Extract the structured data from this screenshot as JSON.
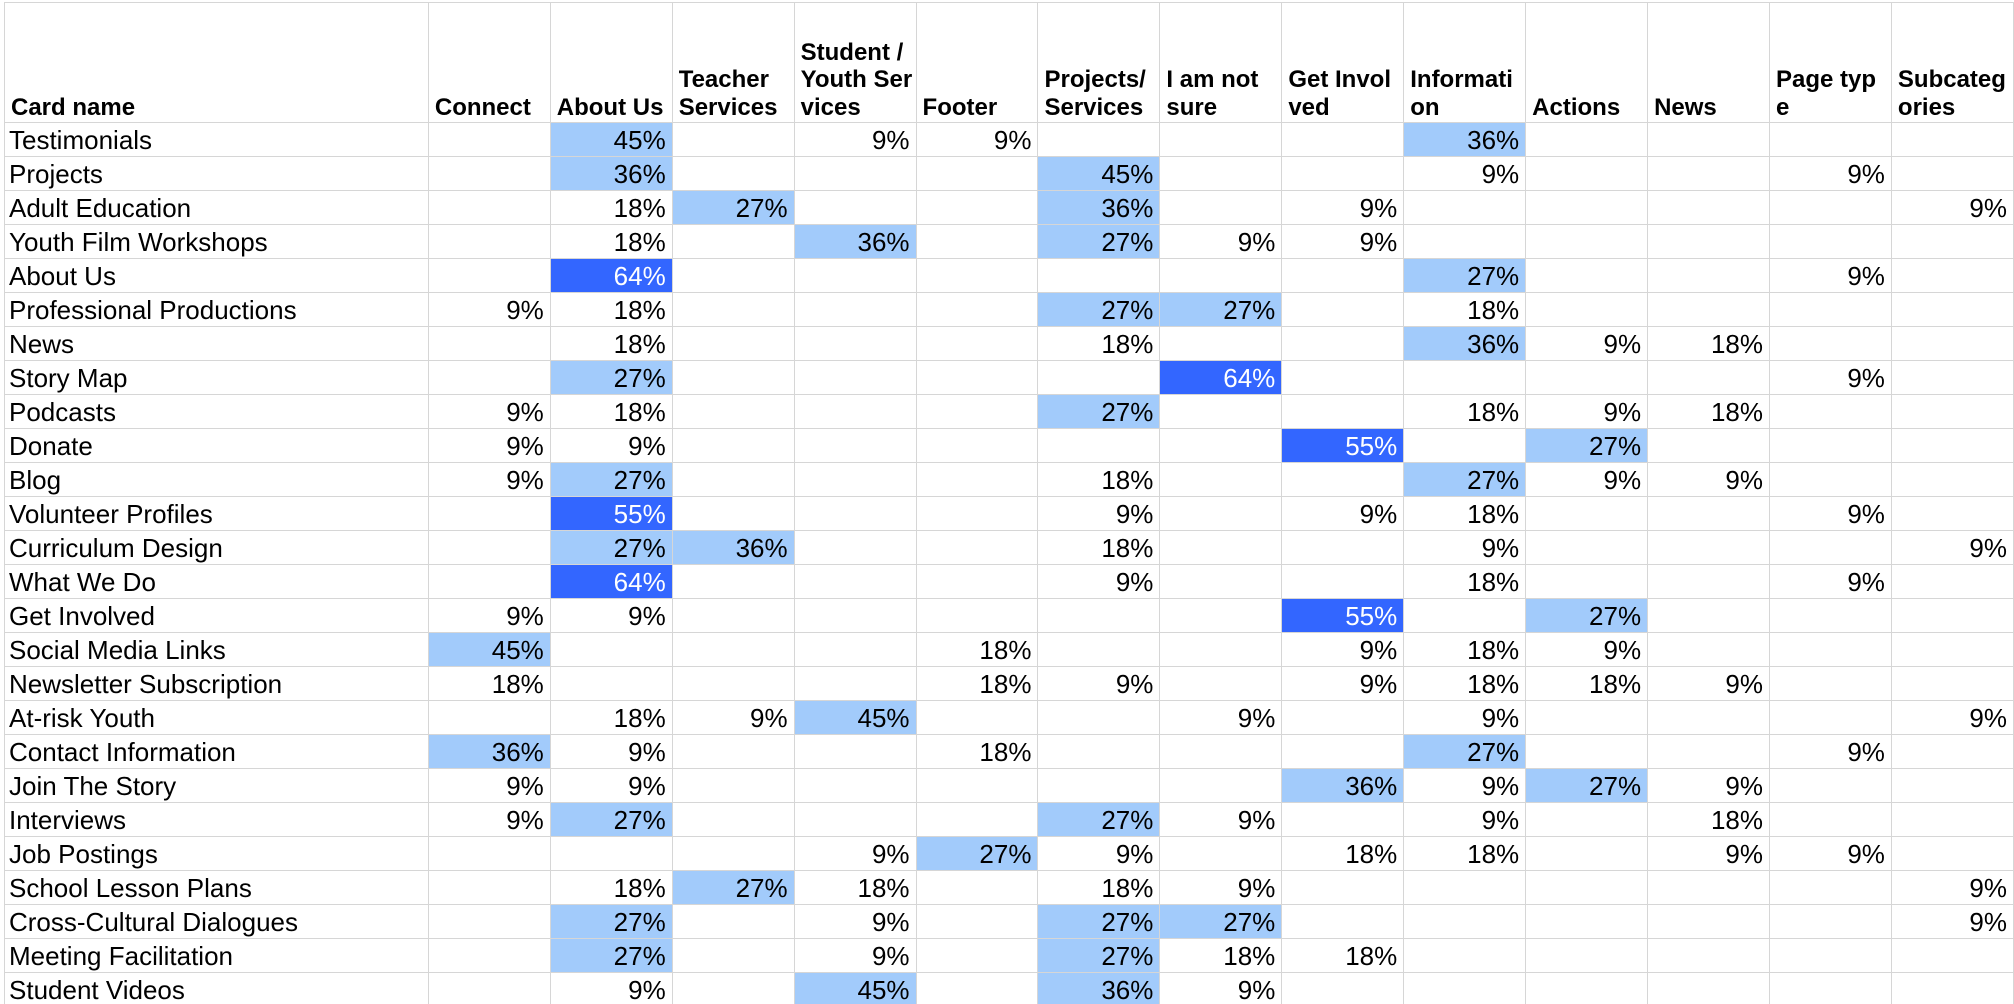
{
  "table": {
    "headers": [
      "Card name",
      "Connect",
      "About Us",
      "Teacher Services",
      "Student /Youth Services",
      "Footer",
      "Projects/Services",
      "I am not sure",
      "Get Involved",
      "Information",
      "Actions",
      "News",
      "Page type",
      "Subcategories"
    ],
    "rows": [
      {
        "name": "Testimonials",
        "values": [
          "",
          "45%",
          "",
          "9%",
          "9%",
          "",
          "",
          "",
          "36%",
          "",
          "",
          "",
          ""
        ]
      },
      {
        "name": "Projects",
        "values": [
          "",
          "36%",
          "",
          "",
          "",
          "45%",
          "",
          "",
          "9%",
          "",
          "",
          "9%",
          ""
        ]
      },
      {
        "name": "Adult Education",
        "values": [
          "",
          "18%",
          "27%",
          "",
          "",
          "36%",
          "",
          "9%",
          "",
          "",
          "",
          "",
          "9%"
        ]
      },
      {
        "name": "Youth Film Workshops",
        "values": [
          "",
          "18%",
          "",
          "36%",
          "",
          "27%",
          "9%",
          "9%",
          "",
          "",
          "",
          "",
          ""
        ]
      },
      {
        "name": "About Us",
        "values": [
          "",
          "64%",
          "",
          "",
          "",
          "",
          "",
          "",
          "27%",
          "",
          "",
          "9%",
          ""
        ]
      },
      {
        "name": "Professional Productions",
        "values": [
          "9%",
          "18%",
          "",
          "",
          "",
          "27%",
          "27%",
          "",
          "18%",
          "",
          "",
          "",
          ""
        ]
      },
      {
        "name": "News",
        "values": [
          "",
          "18%",
          "",
          "",
          "",
          "18%",
          "",
          "",
          "36%",
          "9%",
          "18%",
          "",
          ""
        ]
      },
      {
        "name": "Story Map",
        "values": [
          "",
          "27%",
          "",
          "",
          "",
          "",
          "64%",
          "",
          "",
          "",
          "",
          "9%",
          ""
        ]
      },
      {
        "name": "Podcasts",
        "values": [
          "9%",
          "18%",
          "",
          "",
          "",
          "27%",
          "",
          "",
          "18%",
          "9%",
          "18%",
          "",
          ""
        ]
      },
      {
        "name": "Donate",
        "values": [
          "9%",
          "9%",
          "",
          "",
          "",
          "",
          "",
          "55%",
          "",
          "27%",
          "",
          "",
          ""
        ]
      },
      {
        "name": "Blog",
        "values": [
          "9%",
          "27%",
          "",
          "",
          "",
          "18%",
          "",
          "",
          "27%",
          "9%",
          "9%",
          "",
          ""
        ]
      },
      {
        "name": "Volunteer Profiles",
        "values": [
          "",
          "55%",
          "",
          "",
          "",
          "9%",
          "",
          "9%",
          "18%",
          "",
          "",
          "9%",
          ""
        ]
      },
      {
        "name": "Curriculum Design",
        "values": [
          "",
          "27%",
          "36%",
          "",
          "",
          "18%",
          "",
          "",
          "9%",
          "",
          "",
          "",
          "9%"
        ]
      },
      {
        "name": "What We Do",
        "values": [
          "",
          "64%",
          "",
          "",
          "",
          "9%",
          "",
          "",
          "18%",
          "",
          "",
          "9%",
          ""
        ]
      },
      {
        "name": "Get Involved",
        "values": [
          "9%",
          "9%",
          "",
          "",
          "",
          "",
          "",
          "55%",
          "",
          "27%",
          "",
          "",
          ""
        ]
      },
      {
        "name": "Social Media Links",
        "values": [
          "45%",
          "",
          "",
          "",
          "18%",
          "",
          "",
          "9%",
          "18%",
          "9%",
          "",
          "",
          ""
        ]
      },
      {
        "name": "Newsletter Subscription",
        "values": [
          "18%",
          "",
          "",
          "",
          "18%",
          "9%",
          "",
          "9%",
          "18%",
          "18%",
          "9%",
          "",
          ""
        ]
      },
      {
        "name": "At-risk Youth",
        "values": [
          "",
          "18%",
          "9%",
          "45%",
          "",
          "",
          "9%",
          "",
          "9%",
          "",
          "",
          "",
          "9%"
        ]
      },
      {
        "name": "Contact Information",
        "values": [
          "36%",
          "9%",
          "",
          "",
          "18%",
          "",
          "",
          "",
          "27%",
          "",
          "",
          "9%",
          ""
        ]
      },
      {
        "name": "Join The Story",
        "values": [
          "9%",
          "9%",
          "",
          "",
          "",
          "",
          "",
          "36%",
          "9%",
          "27%",
          "9%",
          "",
          ""
        ]
      },
      {
        "name": "Interviews",
        "values": [
          "9%",
          "27%",
          "",
          "",
          "",
          "27%",
          "9%",
          "",
          "9%",
          "",
          "18%",
          "",
          ""
        ]
      },
      {
        "name": "Job Postings",
        "values": [
          "",
          "",
          "",
          "9%",
          "27%",
          "9%",
          "",
          "18%",
          "18%",
          "",
          "9%",
          "9%",
          ""
        ]
      },
      {
        "name": "School Lesson Plans",
        "values": [
          "",
          "18%",
          "27%",
          "18%",
          "",
          "18%",
          "9%",
          "",
          "",
          "",
          "",
          "",
          "9%"
        ]
      },
      {
        "name": "Cross-Cultural Dialogues",
        "values": [
          "",
          "27%",
          "",
          "9%",
          "",
          "27%",
          "27%",
          "",
          "",
          "",
          "",
          "",
          "9%"
        ]
      },
      {
        "name": "Meeting Facilitation",
        "values": [
          "",
          "27%",
          "",
          "9%",
          "",
          "27%",
          "18%",
          "18%",
          "",
          "",
          "",
          "",
          ""
        ]
      },
      {
        "name": "Student Videos",
        "values": [
          "",
          "9%",
          "",
          "45%",
          "",
          "36%",
          "9%",
          "",
          "",
          "",
          "",
          "",
          ""
        ]
      }
    ]
  },
  "chart_data": {
    "type": "heatmap",
    "title": "",
    "x": [
      "Connect",
      "About Us",
      "Teacher Services",
      "Student /Youth Services",
      "Footer",
      "Projects/Services",
      "I am not sure",
      "Get Involved",
      "Information",
      "Actions",
      "News",
      "Page type",
      "Subcategories"
    ],
    "y": [
      "Testimonials",
      "Projects",
      "Adult Education",
      "Youth Film Workshops",
      "About Us",
      "Professional Productions",
      "News",
      "Story Map",
      "Podcasts",
      "Donate",
      "Blog",
      "Volunteer Profiles",
      "Curriculum Design",
      "What We Do",
      "Get Involved",
      "Social Media Links",
      "Newsletter Subscription",
      "At-risk Youth",
      "Contact Information",
      "Join The Story",
      "Interviews",
      "Job Postings",
      "School Lesson Plans",
      "Cross-Cultural Dialogues",
      "Meeting Facilitation",
      "Student Videos"
    ],
    "unit": "%",
    "highlight_bands": [
      {
        "min": 27,
        "max": 45,
        "color": "#a2cbfb"
      },
      {
        "min": 55,
        "max": 100,
        "color": "#3366ff"
      }
    ]
  }
}
